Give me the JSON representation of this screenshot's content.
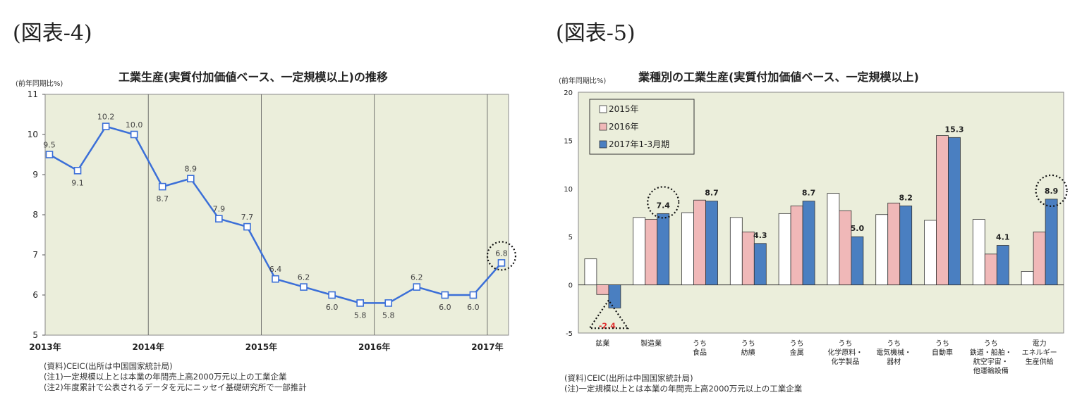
{
  "chart_data": [
    {
      "type": "line",
      "figure_label": "(図表-4)",
      "title": "工業生産(実質付加価値ベース、一定規模以上)の推移",
      "ylabel": "(前年同期比%)",
      "ylim": [
        5,
        11
      ],
      "yticks": [
        "5",
        "6",
        "7",
        "8",
        "9",
        "10",
        "11"
      ],
      "xtick_labels": [
        "2013年",
        "2014年",
        "2015年",
        "2016年",
        "2017年"
      ],
      "values": [
        9.5,
        9.1,
        10.2,
        10.0,
        8.7,
        8.9,
        7.9,
        7.7,
        6.4,
        6.2,
        6.0,
        5.8,
        5.8,
        6.2,
        6.0,
        6.0,
        6.8
      ],
      "labels": [
        "9.5",
        "9.1",
        "10.2",
        "10.0",
        "8.7",
        "8.9",
        "7.9",
        "7.7",
        "6.4",
        "6.2",
        "6.0",
        "5.8",
        "5.8",
        "6.2",
        "6.0",
        "6.0",
        "6.8"
      ],
      "highlight": "6.8",
      "color": "#3b6fd8",
      "grid": "vertical year lines",
      "notes": [
        "(資料)CEIC(出所は中国国家統計局)",
        "(注1)一定規模以上とは本業の年間売上高2000万元以上の工業企業",
        "(注2)年度累計で公表されるデータを元にニッセイ基礎研究所で一部推計"
      ]
    },
    {
      "type": "bar",
      "figure_label": "(図表-5)",
      "title": "業種別の工業生産(実質付加価値ベース、一定規模以上)",
      "ylabel": "(前年同期比%)",
      "ylim": [
        -5,
        20
      ],
      "yticks": [
        "-5",
        "0",
        "5",
        "10",
        "15",
        "20"
      ],
      "categories": [
        "鉱業",
        "製造業",
        "うち|食品",
        "うち|紡績",
        "うち|金属",
        "うち|化学原料・|化学製品",
        "うち|電気機械・|器材",
        "うち|自動車",
        "うち|鉄道・船舶・|航空宇宙・|他運輸設備",
        "電力|エネルギー|生産供給"
      ],
      "series": [
        {
          "name": "2015年",
          "color": "#ffffff",
          "values": [
            2.7,
            7.0,
            7.5,
            7.0,
            7.4,
            9.5,
            7.3,
            6.7,
            6.8,
            1.4
          ]
        },
        {
          "name": "2016年",
          "color": "#f0b8b8",
          "values": [
            -1.0,
            6.8,
            8.8,
            5.5,
            8.2,
            7.7,
            8.5,
            15.5,
            3.2,
            5.5
          ]
        },
        {
          "name": "2017年1-3月期",
          "color": "#4a7fc1",
          "values": [
            -2.4,
            7.4,
            8.7,
            4.3,
            8.7,
            5.0,
            8.2,
            15.3,
            4.1,
            8.9
          ]
        }
      ],
      "data_labels": [
        "-2.4",
        "7.4",
        "8.7",
        "4.3",
        "8.7",
        "5.0",
        "8.2",
        "15.3",
        "4.1",
        "8.9"
      ],
      "legend": "top-left",
      "notes": [
        "(資料)CEIC(出所は中国国家統計局)",
        "(注)一定規模以上とは本業の年間売上高2000万元以上の工業企業"
      ]
    }
  ]
}
